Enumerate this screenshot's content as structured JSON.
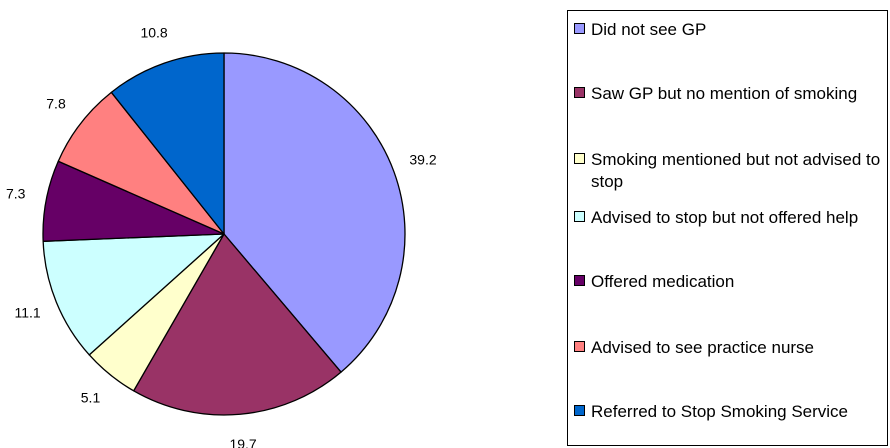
{
  "chart_data": {
    "type": "pie",
    "title": "",
    "start_angle_deg": 0,
    "direction": "clockwise",
    "legend_placement": "right",
    "slices": [
      {
        "label": "Did not see GP",
        "value": 39.2,
        "value_label": "39.2",
        "color": "#9999ff"
      },
      {
        "label": "Saw GP but no mention of smoking",
        "value": 19.7,
        "value_label": "19.7",
        "color": "#993366"
      },
      {
        "label": "Smoking mentioned but not advised to stop",
        "value": 5.1,
        "value_label": "5.1",
        "color": "#ffffcc"
      },
      {
        "label": "Advised to stop but not offered help",
        "value": 11.1,
        "value_label": "11.1",
        "color": "#ccffff"
      },
      {
        "label": "Offered medication",
        "value": 7.3,
        "value_label": "7.3",
        "color": "#660066"
      },
      {
        "label": "Advised to see practice nurse",
        "value": 7.8,
        "value_label": "7.8",
        "color": "#ff8080"
      },
      {
        "label": "Referred to Stop Smoking Service",
        "value": 10.8,
        "value_label": "10.8",
        "color": "#0066cc"
      }
    ]
  }
}
